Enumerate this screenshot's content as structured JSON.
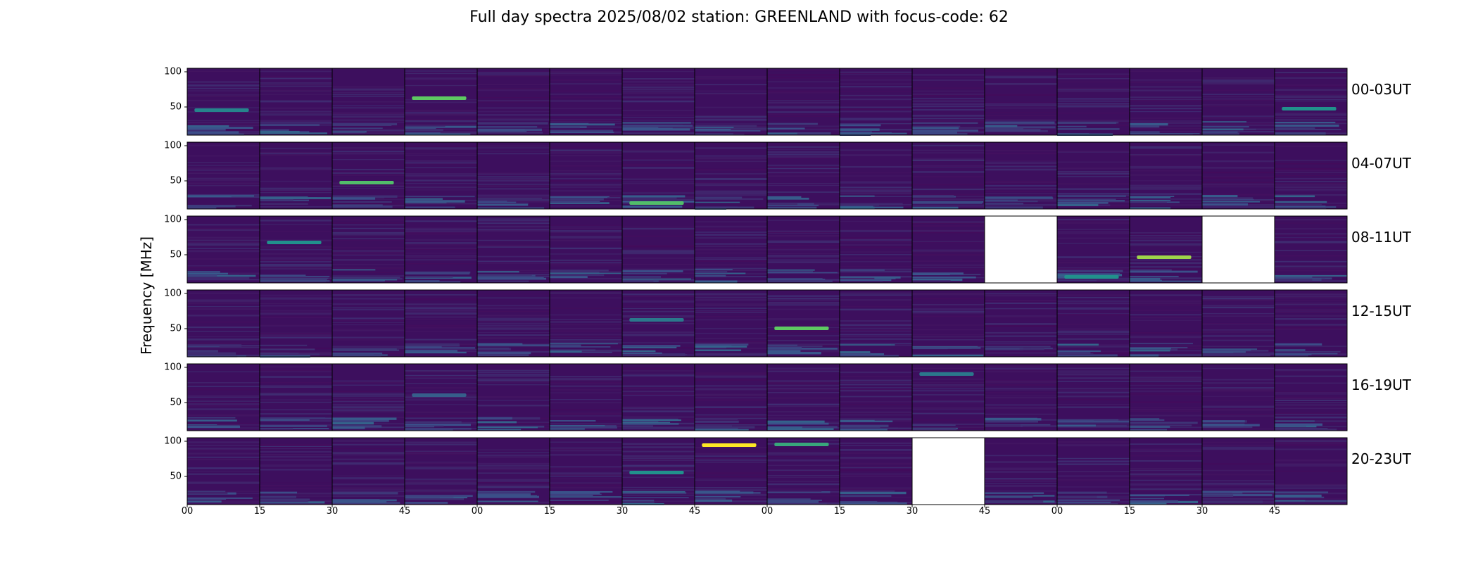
{
  "title": "Full day spectra 2025/08/02 station: GREENLAND with focus-code: 62",
  "chart_data": {
    "type": "heatmap",
    "title": "Full day spectra 2025/08/02 station: GREENLAND with focus-code: 62",
    "ylabel": "Frequency [MHz]",
    "xlabel": "",
    "colormap": "viridis",
    "colors": {
      "low": "#440154",
      "mid": "#2a788e",
      "high": "#fde725",
      "missing": "#ffffff"
    },
    "ylim": [
      10,
      105
    ],
    "yticks": [
      "100",
      "50"
    ],
    "xticks": [
      "00",
      "15",
      "30",
      "45",
      "00",
      "15",
      "30",
      "45",
      "00",
      "15",
      "30",
      "45",
      "00",
      "15",
      "30",
      "45"
    ],
    "rows": [
      {
        "label": "00-03UT",
        "missing": [],
        "features": [
          [
            0,
            45,
            0.45
          ],
          [
            3,
            62,
            0.75
          ],
          [
            15,
            47,
            0.5
          ]
        ]
      },
      {
        "label": "04-07UT",
        "missing": [],
        "features": [
          [
            2,
            47,
            0.7
          ],
          [
            6,
            18,
            0.7
          ]
        ]
      },
      {
        "label": "08-11UT",
        "missing": [
          11,
          14
        ],
        "features": [
          [
            1,
            67,
            0.5
          ],
          [
            13,
            46,
            0.85
          ],
          [
            12,
            18,
            0.5
          ]
        ]
      },
      {
        "label": "12-15UT",
        "missing": [],
        "features": [
          [
            8,
            50,
            0.75
          ],
          [
            6,
            62,
            0.4
          ]
        ]
      },
      {
        "label": "16-19UT",
        "missing": [],
        "features": [
          [
            10,
            90,
            0.4
          ],
          [
            3,
            60,
            0.3
          ]
        ]
      },
      {
        "label": "20-23UT",
        "missing": [
          10
        ],
        "features": [
          [
            7,
            94,
            1.0
          ],
          [
            8,
            95,
            0.6
          ],
          [
            6,
            55,
            0.5
          ]
        ]
      }
    ]
  }
}
